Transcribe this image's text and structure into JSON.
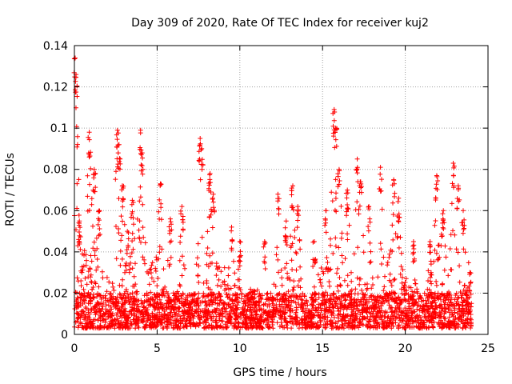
{
  "chart_data": {
    "type": "scatter",
    "title": "Day 309 of 2020, Rate Of TEC Index for receiver kuj2",
    "xlabel": "GPS time / hours",
    "ylabel": "ROTI / TECUs",
    "xlim": [
      0,
      25
    ],
    "ylim": [
      0,
      0.14
    ],
    "xticks": [
      0,
      5,
      10,
      15,
      20,
      25
    ],
    "xtick_labels": [
      "0",
      "5",
      "10",
      "15",
      "20",
      "25"
    ],
    "yticks": [
      0,
      0.02,
      0.04,
      0.06,
      0.08,
      0.1,
      0.12,
      0.14
    ],
    "ytick_labels": [
      "0",
      "0.02",
      "0.04",
      "0.06",
      "0.08",
      "0.1",
      "0.12",
      "0.14"
    ],
    "grid": true,
    "marker": "+",
    "color": "#ff0000",
    "time_span_hours": [
      0,
      24
    ],
    "baseline_range": [
      0.003,
      0.02
    ],
    "peaks": [
      {
        "t": 0.05,
        "y": 0.134
      },
      {
        "t": 0.1,
        "y": 0.126
      },
      {
        "t": 0.3,
        "y": 0.055
      },
      {
        "t": 0.9,
        "y": 0.098
      },
      {
        "t": 1.2,
        "y": 0.08
      },
      {
        "t": 1.5,
        "y": 0.06
      },
      {
        "t": 2.6,
        "y": 0.099
      },
      {
        "t": 2.7,
        "y": 0.092
      },
      {
        "t": 2.9,
        "y": 0.072
      },
      {
        "t": 3.2,
        "y": 0.05
      },
      {
        "t": 3.5,
        "y": 0.065
      },
      {
        "t": 4.0,
        "y": 0.099
      },
      {
        "t": 4.1,
        "y": 0.088
      },
      {
        "t": 5.2,
        "y": 0.073
      },
      {
        "t": 5.8,
        "y": 0.056
      },
      {
        "t": 6.5,
        "y": 0.062
      },
      {
        "t": 7.6,
        "y": 0.095
      },
      {
        "t": 7.7,
        "y": 0.09
      },
      {
        "t": 8.2,
        "y": 0.078
      },
      {
        "t": 8.4,
        "y": 0.068
      },
      {
        "t": 9.5,
        "y": 0.052
      },
      {
        "t": 10.0,
        "y": 0.045
      },
      {
        "t": 11.5,
        "y": 0.045
      },
      {
        "t": 12.3,
        "y": 0.068
      },
      {
        "t": 12.8,
        "y": 0.055
      },
      {
        "t": 13.2,
        "y": 0.072
      },
      {
        "t": 13.5,
        "y": 0.062
      },
      {
        "t": 14.5,
        "y": 0.045
      },
      {
        "t": 15.2,
        "y": 0.06
      },
      {
        "t": 15.7,
        "y": 0.109
      },
      {
        "t": 15.8,
        "y": 0.1
      },
      {
        "t": 16.0,
        "y": 0.08
      },
      {
        "t": 16.5,
        "y": 0.07
      },
      {
        "t": 17.1,
        "y": 0.085
      },
      {
        "t": 17.3,
        "y": 0.074
      },
      {
        "t": 17.8,
        "y": 0.062
      },
      {
        "t": 18.5,
        "y": 0.081
      },
      {
        "t": 19.3,
        "y": 0.075
      },
      {
        "t": 19.6,
        "y": 0.066
      },
      {
        "t": 20.5,
        "y": 0.045
      },
      {
        "t": 21.5,
        "y": 0.045
      },
      {
        "t": 21.9,
        "y": 0.077
      },
      {
        "t": 22.3,
        "y": 0.06
      },
      {
        "t": 22.9,
        "y": 0.083
      },
      {
        "t": 23.2,
        "y": 0.072
      },
      {
        "t": 23.5,
        "y": 0.06
      },
      {
        "t": 23.9,
        "y": 0.03
      }
    ]
  }
}
